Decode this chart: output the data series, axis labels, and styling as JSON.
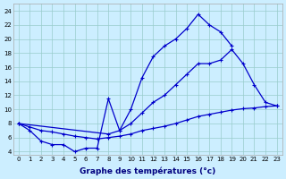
{
  "xlabel": "Graphe des températures (°c)",
  "background_color": "#cceeff",
  "grid_color": "#99cccc",
  "line_color": "#0000cc",
  "yticks": [
    4,
    6,
    8,
    10,
    12,
    14,
    16,
    18,
    20,
    22,
    24
  ],
  "xticks": [
    0,
    1,
    2,
    3,
    4,
    5,
    6,
    7,
    8,
    9,
    10,
    11,
    12,
    13,
    14,
    15,
    16,
    17,
    18,
    19,
    20,
    21,
    22,
    23
  ],
  "curve1_x": [
    0,
    1,
    2,
    3,
    4,
    5,
    6,
    7,
    8,
    9,
    10,
    11,
    12,
    13,
    14,
    15,
    16,
    17,
    18,
    19
  ],
  "curve1_y": [
    8,
    7,
    5.5,
    5,
    5,
    4,
    4.5,
    4.5,
    11.5,
    7,
    10,
    14.5,
    17.5,
    19,
    20,
    21.5,
    23.5,
    22,
    21,
    19
  ],
  "curve2_x": [
    0,
    8,
    9,
    10,
    11,
    12,
    13,
    14,
    15,
    16,
    17,
    18,
    19,
    20,
    21,
    22,
    23
  ],
  "curve2_y": [
    8,
    6.5,
    7,
    8,
    9.5,
    11,
    12,
    13.5,
    15,
    16.5,
    16.5,
    17,
    18.5,
    16.5,
    13.5,
    11,
    10.5
  ],
  "curve3_x": [
    0,
    1,
    2,
    3,
    4,
    5,
    6,
    7,
    8,
    9,
    10,
    11,
    12,
    13,
    14,
    15,
    16,
    17,
    18,
    19,
    20,
    21,
    22,
    23
  ],
  "curve3_y": [
    8,
    7.5,
    7.0,
    6.8,
    6.5,
    6.2,
    6.0,
    5.8,
    6.0,
    6.2,
    6.5,
    7.0,
    7.3,
    7.6,
    8.0,
    8.5,
    9.0,
    9.3,
    9.6,
    9.9,
    10.1,
    10.2,
    10.4,
    10.5
  ],
  "ylim": [
    3.5,
    25
  ],
  "xlim": [
    -0.5,
    23.5
  ],
  "marker_size": 2.5,
  "linewidth": 0.9
}
